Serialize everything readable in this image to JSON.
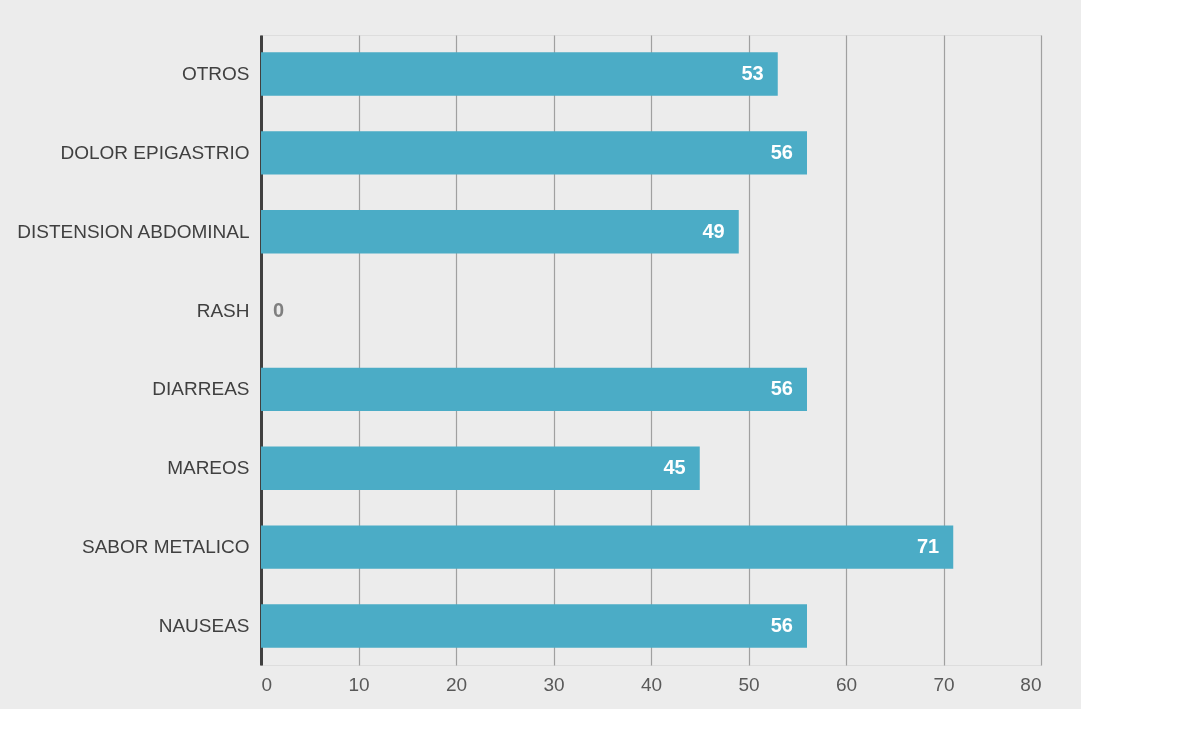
{
  "chart_data": {
    "type": "bar",
    "orientation": "horizontal",
    "categories": [
      "OTROS",
      "DOLOR EPIGASTRIO",
      "DISTENSION ABDOMINAL",
      "RASH",
      "DIARREAS",
      "MAREOS",
      "SABOR METALICO",
      "NAUSEAS"
    ],
    "values": [
      53,
      56,
      49,
      0,
      56,
      45,
      71,
      56
    ],
    "color": "#4bacc6",
    "xlim": [
      0,
      80
    ],
    "xticks": [
      0,
      10,
      20,
      30,
      40,
      50,
      60,
      70,
      80
    ],
    "grid": "x",
    "data_labels": true
  }
}
